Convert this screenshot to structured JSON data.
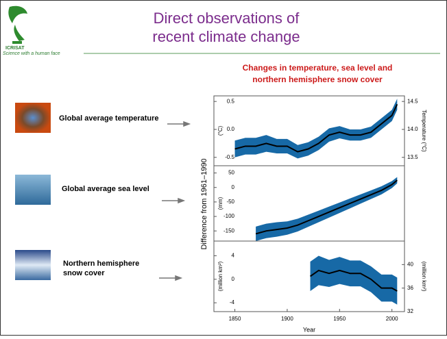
{
  "header": {
    "logo_text": "ICRISAT",
    "tagline": "Science with a human face",
    "title": [
      "Direct observations of",
      "recent climate change"
    ]
  },
  "items": [
    {
      "label": [
        "Global average temperature"
      ]
    },
    {
      "label": [
        "Global average sea level"
      ]
    },
    {
      "label": [
        "Northern hemisphere",
        "snow cover"
      ]
    }
  ],
  "figure": {
    "title": [
      "Changes in temperature, sea level and",
      "northern hemisphere snow cover"
    ],
    "ylabel": "Difference from 1961–1990",
    "xlabel": "Year",
    "xlim": [
      1830,
      2012
    ],
    "xticks": [
      1850,
      1900,
      1950,
      2000
    ]
  },
  "chart_data": [
    {
      "type": "line",
      "ylabel": "(°C)",
      "y2label": "Temperature (°C)",
      "ylim": [
        -0.65,
        0.6
      ],
      "yticks": [
        0.5,
        {
          "value": 0,
          "label": "0.0"
        },
        -0.5
      ],
      "y2lim": [
        13.35,
        14.6
      ],
      "y2ticks": [
        14.5,
        {
          "value": 14,
          "label": "14.0"
        },
        13.5
      ],
      "band_color": "#1769a6",
      "x": [
        1850,
        1860,
        1870,
        1880,
        1890,
        1900,
        1910,
        1920,
        1930,
        1940,
        1950,
        1960,
        1970,
        1980,
        1990,
        2000,
        2005
      ],
      "series": [
        {
          "color": "#000000",
          "values": [
            -0.35,
            -0.3,
            -0.3,
            -0.25,
            -0.3,
            -0.3,
            -0.4,
            -0.35,
            -0.25,
            -0.1,
            -0.05,
            -0.1,
            -0.1,
            -0.05,
            0.1,
            0.25,
            0.45
          ],
          "lower": [
            -0.5,
            -0.45,
            -0.45,
            -0.4,
            -0.43,
            -0.43,
            -0.52,
            -0.47,
            -0.37,
            -0.22,
            -0.16,
            -0.2,
            -0.2,
            -0.15,
            0.0,
            0.15,
            0.35
          ],
          "upper": [
            -0.2,
            -0.15,
            -0.15,
            -0.1,
            -0.17,
            -0.17,
            -0.28,
            -0.23,
            -0.13,
            0.02,
            0.06,
            0.0,
            0.0,
            0.05,
            0.2,
            0.35,
            0.55
          ]
        }
      ]
    },
    {
      "type": "line",
      "ylabel": "(mm)",
      "ylim": [
        -185,
        75
      ],
      "yticks": [
        50,
        0,
        -50,
        -100,
        -150
      ],
      "band_color": "#1769a6",
      "x": [
        1870,
        1880,
        1890,
        1900,
        1910,
        1920,
        1930,
        1940,
        1950,
        1960,
        1970,
        1980,
        1990,
        2000,
        2005
      ],
      "series": [
        {
          "color": "#000000",
          "values": [
            -160,
            -150,
            -145,
            -140,
            -130,
            -115,
            -100,
            -85,
            -70,
            -55,
            -40,
            -25,
            -10,
            10,
            25
          ],
          "lower": [
            -185,
            -175,
            -170,
            -163,
            -152,
            -136,
            -120,
            -104,
            -88,
            -72,
            -56,
            -40,
            -24,
            -2,
            14
          ],
          "upper": [
            -135,
            -125,
            -120,
            -117,
            -108,
            -94,
            -80,
            -66,
            -52,
            -38,
            -24,
            -10,
            4,
            22,
            36
          ]
        }
      ]
    },
    {
      "type": "line",
      "ylabel": "(million km²)",
      "y2label": "(million km²)",
      "ylim": [
        -5.5,
        6.5
      ],
      "yticks": [
        4,
        0,
        -4
      ],
      "y2lim": [
        32,
        44
      ],
      "y2ticks": [
        40,
        36,
        32
      ],
      "band_color": "#1769a6",
      "x": [
        1922,
        1930,
        1940,
        1950,
        1960,
        1970,
        1980,
        1990,
        2000,
        2005
      ],
      "series": [
        {
          "color": "#000000",
          "values": [
            0.5,
            1.5,
            1,
            1.5,
            1,
            1,
            0,
            -1.5,
            -1.5,
            -2
          ],
          "lower": [
            -2,
            -1,
            -1.3,
            -0.8,
            -1.2,
            -1.2,
            -2.2,
            -3.8,
            -3.8,
            -4.3
          ],
          "upper": [
            3,
            4,
            3.3,
            3.8,
            3.2,
            3.2,
            2.2,
            0.8,
            0.8,
            0.3
          ]
        }
      ]
    }
  ]
}
